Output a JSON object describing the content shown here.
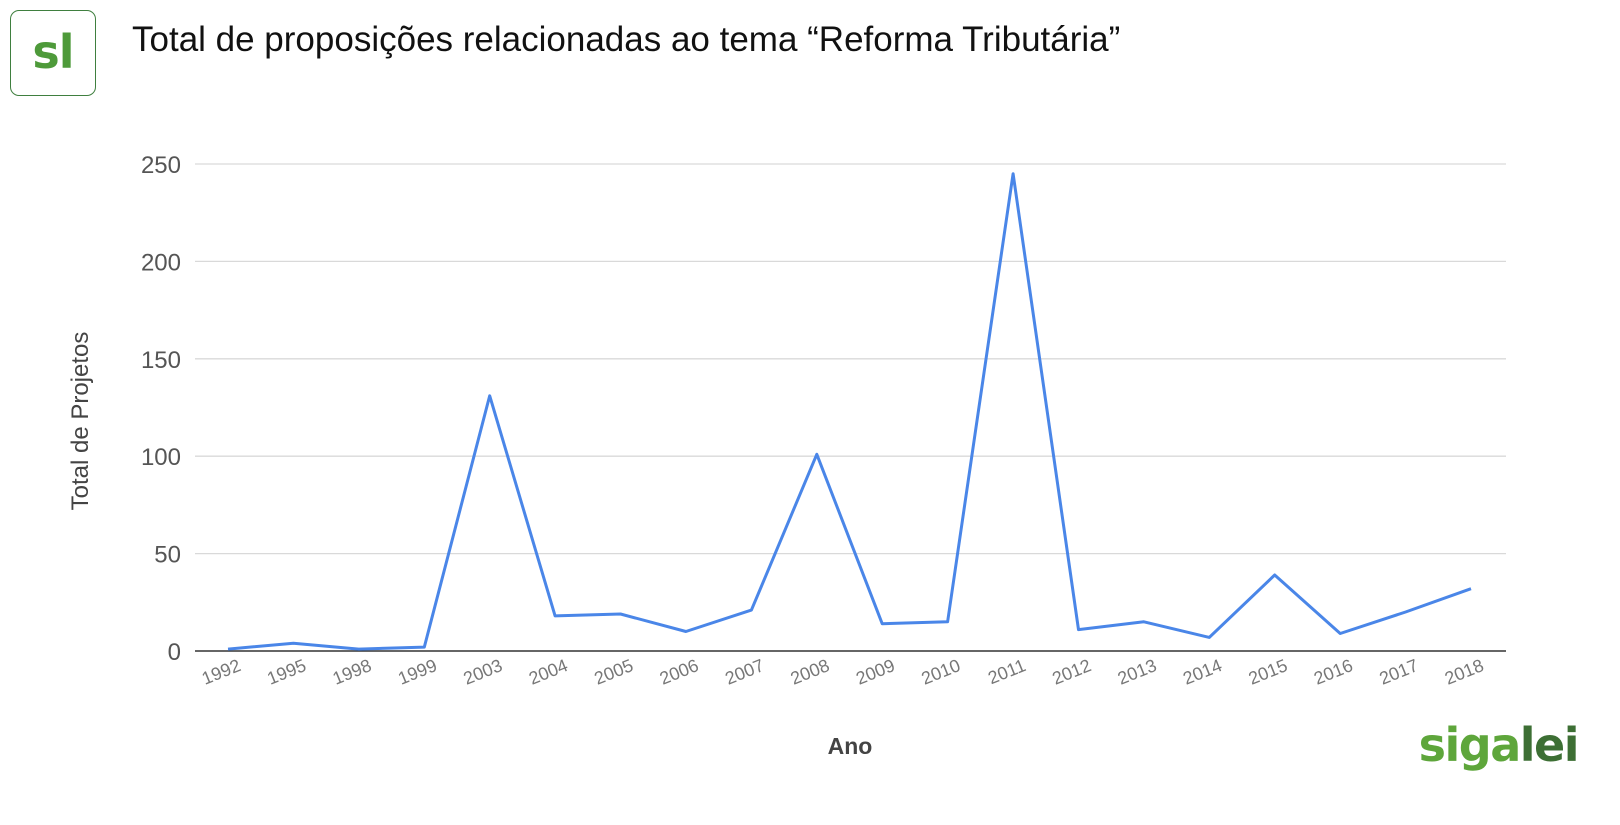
{
  "logo": {
    "text": "sl"
  },
  "brand": {
    "part1": "siga",
    "part2": "lei"
  },
  "colors": {
    "line": "#4a86e8",
    "grid": "#d9d9d9",
    "brand_green": "#5ea63b",
    "brand_dark": "#3d6f34"
  },
  "chart_data": {
    "type": "line",
    "title": "Total de proposições relacionadas ao tema “Reforma Tributária”",
    "xlabel": "Ano",
    "ylabel": "Total de Projetos",
    "ylim": [
      0,
      250
    ],
    "yticks": [
      "0",
      "50",
      "100",
      "150",
      "200",
      "250"
    ],
    "grid": true,
    "categories": [
      "1992",
      "1995",
      "1998",
      "1999",
      "2003",
      "2004",
      "2005",
      "2006",
      "2007",
      "2008",
      "2009",
      "2010",
      "2011",
      "2012",
      "2013",
      "2014",
      "2015",
      "2016",
      "2017",
      "2018"
    ],
    "series": [
      {
        "values": [
          1,
          4,
          1,
          2,
          131,
          18,
          19,
          10,
          21,
          101,
          14,
          15,
          245,
          11,
          15,
          7,
          39,
          9,
          20,
          32
        ]
      }
    ]
  }
}
